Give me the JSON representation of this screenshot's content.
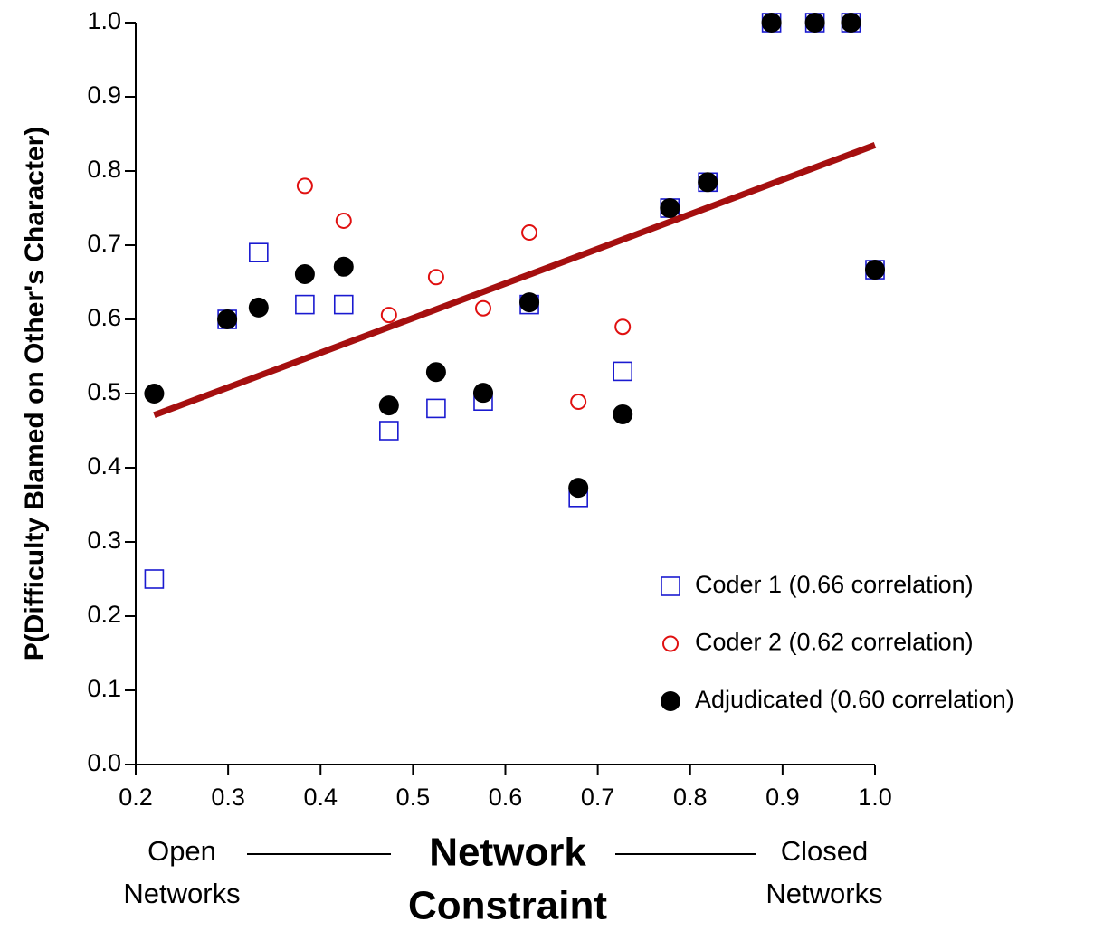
{
  "chart_data": {
    "type": "scatter",
    "ylabel": "P(Difficulty Blamed on Other's Character)",
    "xlabel_lines": [
      "Network",
      "Constraint"
    ],
    "left_annotation": [
      "Open",
      "Networks"
    ],
    "right_annotation": [
      "Closed",
      "Networks"
    ],
    "xlim": [
      0.2,
      1.0
    ],
    "ylim": [
      0.0,
      1.0
    ],
    "xticks": [
      0.2,
      0.3,
      0.4,
      0.5,
      0.6,
      0.7,
      0.8,
      0.9,
      {
        "value": 1.0,
        "label": "1.0"
      }
    ],
    "yticks": [
      {
        "value": 0,
        "label": "0.0"
      },
      0.1,
      0.2,
      0.3,
      0.4,
      0.5,
      0.6,
      0.7,
      0.8,
      0.9,
      {
        "value": 1.0,
        "label": "1.0"
      }
    ],
    "x": [
      0.22,
      0.299,
      0.333,
      0.383,
      0.425,
      0.474,
      0.525,
      0.576,
      0.626,
      0.679,
      0.727,
      0.778,
      0.819,
      0.888,
      0.935,
      0.974,
      1.0
    ],
    "series": [
      {
        "name": "Coder 1 (0.66 correlation)",
        "color": "#1a1ad0",
        "marker": "square",
        "values": [
          0.25,
          0.6,
          0.69,
          0.62,
          0.62,
          0.45,
          0.48,
          0.49,
          0.62,
          0.36,
          0.53,
          0.75,
          0.785,
          1.0,
          1.0,
          1.0,
          0.667
        ]
      },
      {
        "name": "Coder 2 (0.62 correlation)",
        "color": "#e01010",
        "marker": "circle",
        "values": [
          0.5,
          0.6,
          0.615,
          0.78,
          0.733,
          0.606,
          0.657,
          0.615,
          0.717,
          0.489,
          0.59,
          0.75,
          0.785,
          1.0,
          1.0,
          1.0,
          0.667
        ]
      },
      {
        "name": "Adjudicated (0.60 correlation)",
        "color": "#000000",
        "marker": "filled-circle",
        "values": [
          0.5,
          0.6,
          0.616,
          0.661,
          0.671,
          0.484,
          0.529,
          0.501,
          0.623,
          0.373,
          0.472,
          0.75,
          0.785,
          1.0,
          1.0,
          1.0,
          0.667
        ]
      }
    ],
    "fit_line": {
      "color": "#a50f0f",
      "x": [
        0.22,
        1.0
      ],
      "values": [
        0.471,
        0.835
      ]
    }
  }
}
